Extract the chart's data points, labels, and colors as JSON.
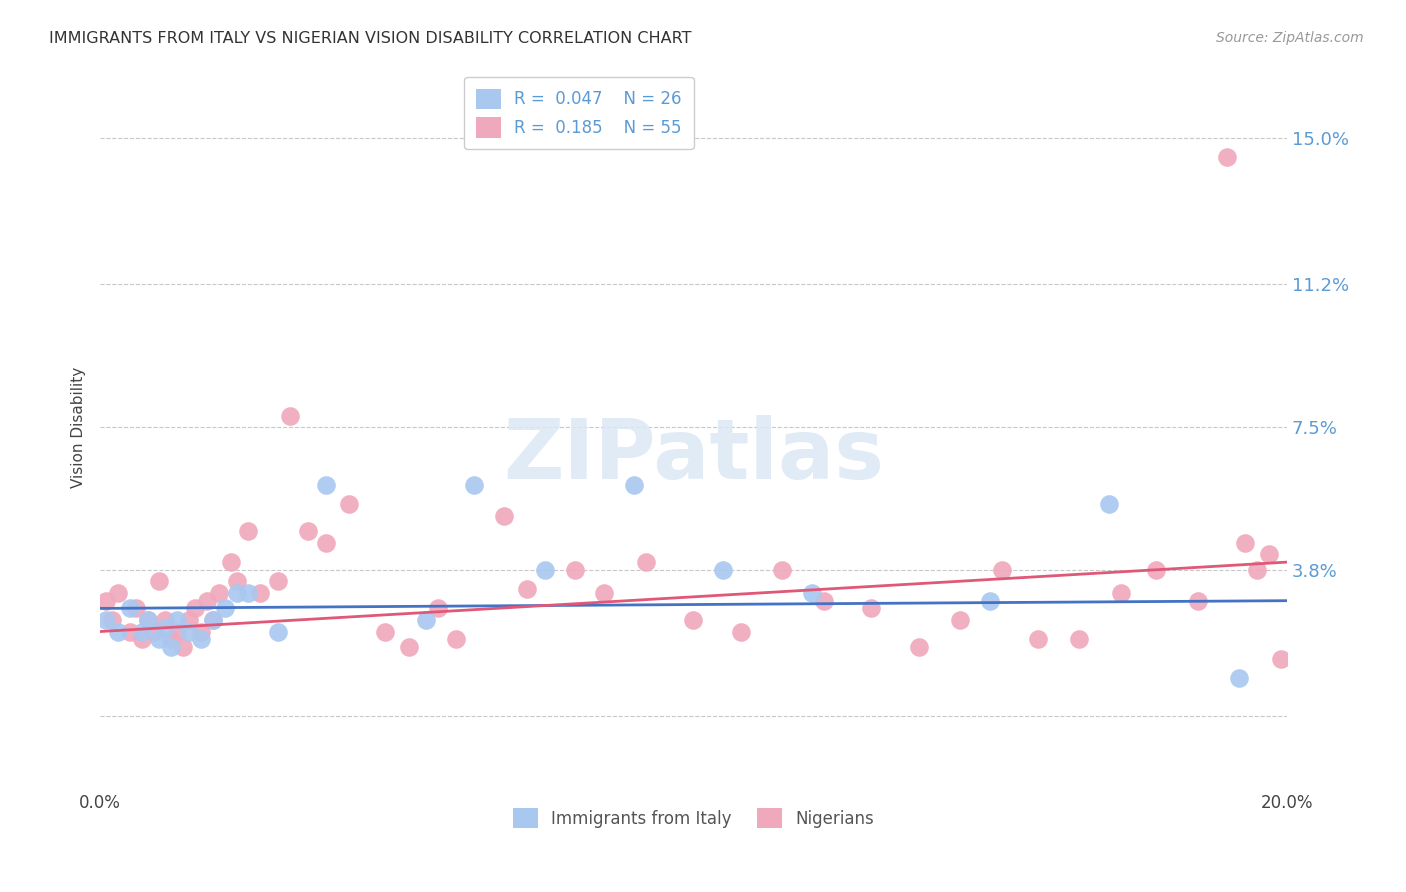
{
  "title": "IMMIGRANTS FROM ITALY VS NIGERIAN VISION DISABILITY CORRELATION CHART",
  "source": "Source: ZipAtlas.com",
  "ylabel": "Vision Disability",
  "xlim": [
    0.0,
    0.2
  ],
  "ylim": [
    -0.018,
    0.168
  ],
  "yticks": [
    0.0,
    0.038,
    0.075,
    0.112,
    0.15
  ],
  "ytick_labels": [
    "",
    "3.8%",
    "7.5%",
    "11.2%",
    "15.0%"
  ],
  "xticks": [
    0.0,
    0.05,
    0.1,
    0.15,
    0.2
  ],
  "xtick_labels": [
    "0.0%",
    "",
    "",
    "",
    "20.0%"
  ],
  "background_color": "#ffffff",
  "grid_color": "#c8c8c8",
  "blue_color": "#a8c8f0",
  "pink_color": "#f0a8bc",
  "line_blue": "#4472c4",
  "line_pink": "#e05878",
  "label_color": "#5b9bd5",
  "italy_R": "0.047",
  "italy_N": "26",
  "nigerian_R": "0.185",
  "nigerian_N": "55",
  "italy_x": [
    0.001,
    0.003,
    0.005,
    0.007,
    0.008,
    0.01,
    0.011,
    0.012,
    0.013,
    0.015,
    0.017,
    0.019,
    0.021,
    0.023,
    0.025,
    0.03,
    0.038,
    0.055,
    0.063,
    0.075,
    0.09,
    0.105,
    0.12,
    0.15,
    0.17,
    0.192
  ],
  "italy_y": [
    0.025,
    0.022,
    0.028,
    0.022,
    0.025,
    0.02,
    0.023,
    0.018,
    0.025,
    0.022,
    0.02,
    0.025,
    0.028,
    0.032,
    0.032,
    0.022,
    0.06,
    0.025,
    0.06,
    0.038,
    0.06,
    0.038,
    0.032,
    0.03,
    0.055,
    0.01
  ],
  "nigerian_x": [
    0.001,
    0.002,
    0.003,
    0.005,
    0.006,
    0.007,
    0.008,
    0.009,
    0.01,
    0.011,
    0.012,
    0.013,
    0.014,
    0.015,
    0.016,
    0.017,
    0.018,
    0.019,
    0.02,
    0.022,
    0.023,
    0.025,
    0.027,
    0.03,
    0.032,
    0.035,
    0.038,
    0.042,
    0.048,
    0.052,
    0.057,
    0.06,
    0.068,
    0.072,
    0.08,
    0.085,
    0.092,
    0.1,
    0.108,
    0.115,
    0.122,
    0.13,
    0.138,
    0.145,
    0.152,
    0.158,
    0.165,
    0.172,
    0.178,
    0.185,
    0.19,
    0.193,
    0.195,
    0.197,
    0.199
  ],
  "nigerian_y": [
    0.03,
    0.025,
    0.032,
    0.022,
    0.028,
    0.02,
    0.025,
    0.022,
    0.035,
    0.025,
    0.02,
    0.022,
    0.018,
    0.025,
    0.028,
    0.022,
    0.03,
    0.025,
    0.032,
    0.04,
    0.035,
    0.048,
    0.032,
    0.035,
    0.078,
    0.048,
    0.045,
    0.055,
    0.022,
    0.018,
    0.028,
    0.02,
    0.052,
    0.033,
    0.038,
    0.032,
    0.04,
    0.025,
    0.022,
    0.038,
    0.03,
    0.028,
    0.018,
    0.025,
    0.038,
    0.02,
    0.02,
    0.032,
    0.038,
    0.03,
    0.145,
    0.045,
    0.038,
    0.042,
    0.015
  ],
  "italy_trend_x": [
    0.0,
    0.2
  ],
  "italy_trend_y": [
    0.028,
    0.03
  ],
  "nigerian_trend_x": [
    0.0,
    0.2
  ],
  "nigerian_trend_y": [
    0.022,
    0.04
  ]
}
